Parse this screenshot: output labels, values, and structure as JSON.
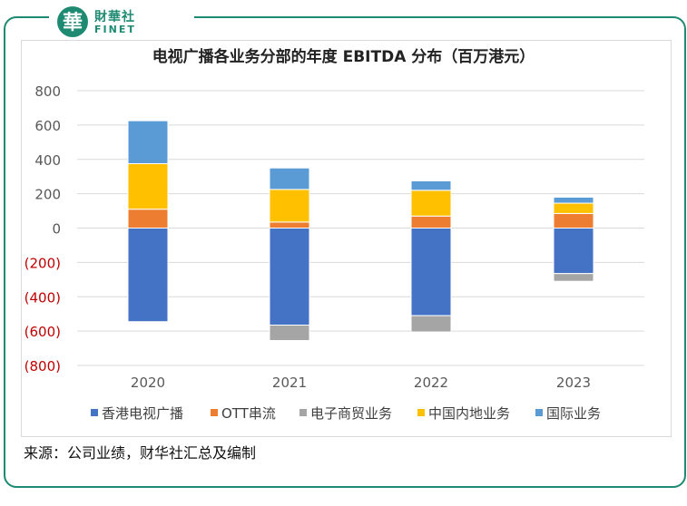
{
  "brand": {
    "cn": "財華社",
    "en": "FINET",
    "seal_char": "華"
  },
  "chart_data": {
    "type": "bar",
    "stacked": true,
    "title": "电视广播各业务分部的年度 EBITDA 分布（百万港元）",
    "categories": [
      "2020",
      "2021",
      "2022",
      "2023"
    ],
    "ylim": [
      -800,
      800
    ],
    "yticks": [
      800,
      600,
      400,
      200,
      0,
      -200,
      -400,
      -600,
      -800
    ],
    "ytick_labels": [
      "800",
      "600",
      "400",
      "200",
      "0",
      "(200)",
      "(400)",
      "(600)",
      "(800)"
    ],
    "grid": true,
    "legend_position": "bottom",
    "negative_tick_color": "#c00000",
    "series": [
      {
        "name": "香港电视广播",
        "color": "#4472c4",
        "values": [
          -545,
          -565,
          -510,
          -265
        ]
      },
      {
        "name": "OTT串流",
        "color": "#ed7d31",
        "values": [
          110,
          35,
          70,
          85
        ]
      },
      {
        "name": "电子商贸业务",
        "color": "#a5a5a5",
        "values": [
          0,
          -90,
          -95,
          -45
        ]
      },
      {
        "name": "中国内地业务",
        "color": "#ffc000",
        "values": [
          265,
          190,
          150,
          60
        ]
      },
      {
        "name": "国际业务",
        "color": "#5b9bd5",
        "values": [
          250,
          125,
          55,
          35
        ]
      }
    ]
  },
  "source": "来源：公司业绩，财华社汇总及编制"
}
